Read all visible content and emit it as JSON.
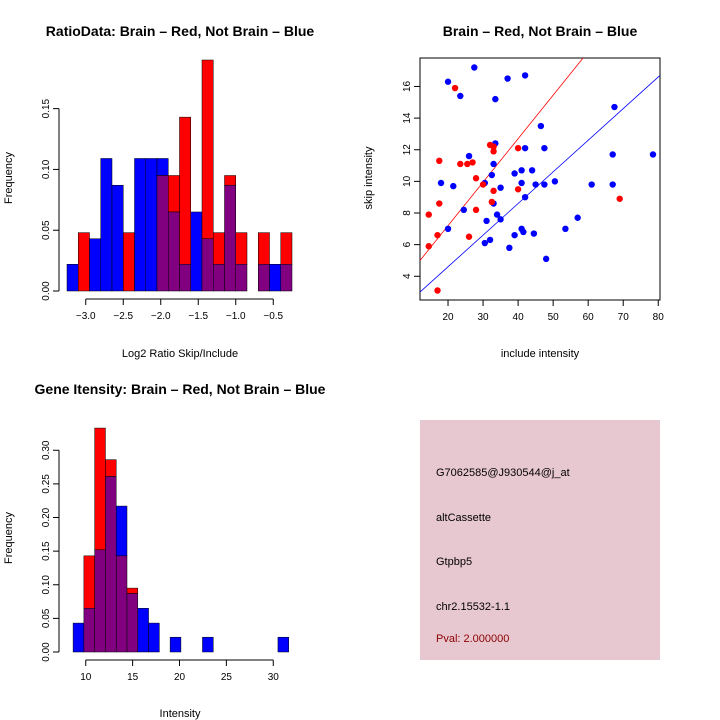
{
  "charts": [
    {
      "type": "histogram",
      "title": "RatioData: Brain – Red, Not Brain – Blue",
      "xlabel": "Log2 Ratio Skip/Include",
      "ylabel": "Frequency",
      "xlim": [
        -3.25,
        -0.25
      ],
      "ylim": [
        0,
        0.19
      ],
      "x_ticks": [
        -3.0,
        -2.5,
        -2.0,
        -1.5,
        -1.0,
        -0.5
      ],
      "x_tick_labels": [
        "−3.0",
        "−2.5",
        "−2.0",
        "−1.5",
        "−1.0",
        "−0.5"
      ],
      "y_ticks": [
        0.0,
        0.05,
        0.1,
        0.15
      ],
      "y_tick_labels": [
        "0.00",
        "0.05",
        "0.10",
        "0.15"
      ],
      "bin_width": 0.15,
      "bin_start": -3.25,
      "series": [
        {
          "name": "Brain",
          "color": "#ff0000",
          "values": [
            0,
            0.048,
            0,
            0,
            0,
            0.048,
            0,
            0,
            0.095,
            0.095,
            0.143,
            0,
            0.19,
            0.048,
            0.095,
            0.048,
            0,
            0.048,
            0,
            0.048
          ]
        },
        {
          "name": "Not Brain",
          "color": "#0000ff",
          "values": [
            0.022,
            0,
            0.043,
            0.109,
            0.087,
            0,
            0.109,
            0.109,
            0.109,
            0.065,
            0.022,
            0.065,
            0.043,
            0.022,
            0.087,
            0.022,
            0,
            0.022,
            0.022,
            0.022
          ]
        }
      ],
      "overlap_color": "#800080"
    },
    {
      "type": "scatter",
      "title": "Brain – Red, Not Brain – Blue",
      "xlabel": "include intensity",
      "ylabel": "skip intensity",
      "xlim": [
        12,
        80.5
      ],
      "ylim": [
        2.5,
        17.8
      ],
      "x_ticks": [
        20,
        30,
        40,
        50,
        60,
        70,
        80
      ],
      "y_ticks": [
        4,
        6,
        8,
        10,
        12,
        14,
        16
      ],
      "series": [
        {
          "name": "Not Brain",
          "color": "#0000ff",
          "points": [
            [
              27.5,
              17.2
            ],
            [
              20,
              16.3
            ],
            [
              42,
              16.7
            ],
            [
              37,
              16.5
            ],
            [
              23.5,
              15.4
            ],
            [
              33.5,
              15.2
            ],
            [
              67.5,
              14.7
            ],
            [
              46.5,
              13.5
            ],
            [
              33.5,
              12.4
            ],
            [
              42,
              12.1
            ],
            [
              47.5,
              12.1
            ],
            [
              26,
              11.6
            ],
            [
              33,
              11.1
            ],
            [
              41,
              10.7
            ],
            [
              44,
              10.7
            ],
            [
              32.5,
              10.4
            ],
            [
              67,
              11.7
            ],
            [
              78.5,
              11.7
            ],
            [
              39,
              10.5
            ],
            [
              18,
              9.9
            ],
            [
              21.5,
              9.7
            ],
            [
              30.5,
              9.9
            ],
            [
              41,
              9.9
            ],
            [
              47.5,
              9.8
            ],
            [
              45,
              9.8
            ],
            [
              61,
              9.8
            ],
            [
              67,
              9.8
            ],
            [
              50.5,
              10.0
            ],
            [
              35,
              9.6
            ],
            [
              42,
              9.0
            ],
            [
              33,
              8.6
            ],
            [
              24.5,
              8.2
            ],
            [
              34,
              7.9
            ],
            [
              35,
              7.6
            ],
            [
              31,
              7.5
            ],
            [
              57,
              7.7
            ],
            [
              53.5,
              7.0
            ],
            [
              20,
              7.0
            ],
            [
              41,
              7.0
            ],
            [
              41.5,
              6.8
            ],
            [
              44.5,
              6.7
            ],
            [
              39,
              6.6
            ],
            [
              32,
              6.3
            ],
            [
              30.5,
              6.1
            ],
            [
              37.5,
              5.8
            ],
            [
              48,
              5.1
            ]
          ]
        },
        {
          "name": "Brain",
          "color": "#ff0000",
          "points": [
            [
              22,
              15.9
            ],
            [
              32,
              12.3
            ],
            [
              33,
              12.2
            ],
            [
              40,
              12.1
            ],
            [
              33,
              11.9
            ],
            [
              17.5,
              11.3
            ],
            [
              25.5,
              11.1
            ],
            [
              27,
              11.2
            ],
            [
              23.5,
              11.1
            ],
            [
              28,
              10.2
            ],
            [
              30,
              9.8
            ],
            [
              40,
              9.5
            ],
            [
              33,
              9.4
            ],
            [
              69,
              8.9
            ],
            [
              17.5,
              8.6
            ],
            [
              32.5,
              8.7
            ],
            [
              14.5,
              7.9
            ],
            [
              28,
              8.2
            ],
            [
              17,
              6.6
            ],
            [
              26,
              6.5
            ],
            [
              14.5,
              5.9
            ],
            [
              17,
              3.1
            ]
          ]
        }
      ],
      "lines": [
        {
          "name": "Brain fit",
          "color": "#ff0000",
          "intercept": 1.7,
          "slope": 0.275
        },
        {
          "name": "Not Brain fit",
          "color": "#0000ff",
          "intercept": 0.6,
          "slope": 0.2
        }
      ]
    },
    {
      "type": "histogram",
      "title": "Gene Itensity: Brain – Red, Not Brain – Blue",
      "xlabel": "Intensity",
      "ylabel": "Frequency",
      "xlim": [
        8,
        32
      ],
      "ylim": [
        0,
        0.345
      ],
      "x_ticks": [
        10,
        15,
        20,
        25,
        30
      ],
      "x_tick_labels": [
        "10",
        "15",
        "20",
        "25",
        "30"
      ],
      "y_ticks": [
        0,
        0.05,
        0.1,
        0.15,
        0.2,
        0.25,
        0.3
      ],
      "y_tick_labels": [
        "0.00",
        "0.05",
        "0.10",
        "0.15",
        "0.20",
        "0.25",
        "0.30"
      ],
      "bin_width": 1.15,
      "bin_start": 8.65,
      "series": [
        {
          "name": "Brain",
          "color": "#ff0000",
          "values": [
            0,
            0.143,
            0.333,
            0.286,
            0.143,
            0.095,
            0,
            0,
            0,
            0,
            0,
            0,
            0,
            0,
            0,
            0,
            0,
            0,
            0,
            0
          ]
        },
        {
          "name": "Not Brain",
          "color": "#0000ff",
          "values": [
            0.043,
            0.065,
            0.152,
            0.261,
            0.217,
            0.087,
            0.065,
            0.043,
            0,
            0.022,
            0,
            0,
            0.022,
            0,
            0,
            0,
            0,
            0,
            0,
            0.022
          ]
        }
      ],
      "overlap_color": "#800080"
    }
  ],
  "info": {
    "background": "#e8c8d0",
    "probe_id": "G7062585@J930544@j_at",
    "event_type": "altCassette",
    "gene": "Gtpbp5",
    "location": "chr2.15532-1.1",
    "pval": "Pval: 2.000000",
    "pval_color": "#8b0000"
  }
}
